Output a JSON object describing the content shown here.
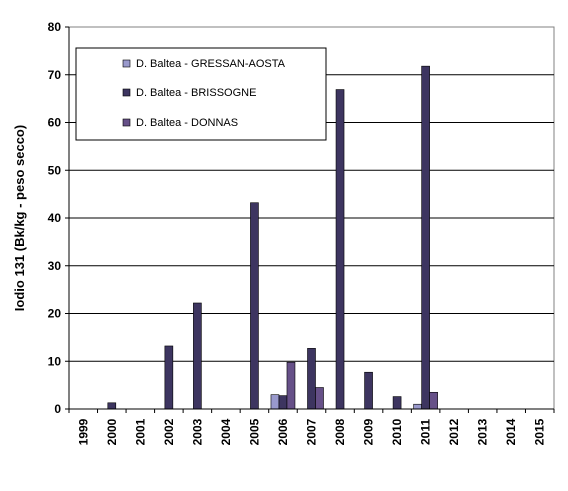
{
  "chart_data": {
    "type": "bar",
    "ylabel": "Iodio 131  (Bk/kg - peso secco)",
    "xlabel": "",
    "ylim": [
      0,
      80
    ],
    "y_ticks": [
      0,
      10,
      20,
      30,
      40,
      50,
      60,
      70,
      80
    ],
    "grid": "horizontal",
    "legend_placement": "top-left",
    "categories": [
      "1999",
      "2000",
      "2001",
      "2002",
      "2003",
      "2004",
      "2005",
      "2006",
      "2007",
      "2008",
      "2009",
      "2010",
      "2011",
      "2012",
      "2013",
      "2014",
      "2015"
    ],
    "series": [
      {
        "name": "D. Baltea - GRESSAN-AOSTA",
        "color": "#9999cc",
        "values": [
          null,
          null,
          null,
          null,
          null,
          null,
          null,
          3.0,
          null,
          null,
          null,
          null,
          1.0,
          null,
          null,
          null,
          null
        ]
      },
      {
        "name": "D. Baltea - BRISSOGNE",
        "color": "#3d3560",
        "values": [
          null,
          1.3,
          null,
          13.2,
          22.2,
          null,
          43.2,
          2.8,
          12.7,
          66.9,
          7.7,
          2.6,
          71.8,
          null,
          null,
          null,
          null
        ]
      },
      {
        "name": "D. Baltea - DONNAS",
        "color": "#665088",
        "values": [
          null,
          null,
          null,
          null,
          null,
          null,
          null,
          9.8,
          4.5,
          null,
          null,
          null,
          3.5,
          null,
          null,
          null,
          null
        ]
      }
    ]
  }
}
